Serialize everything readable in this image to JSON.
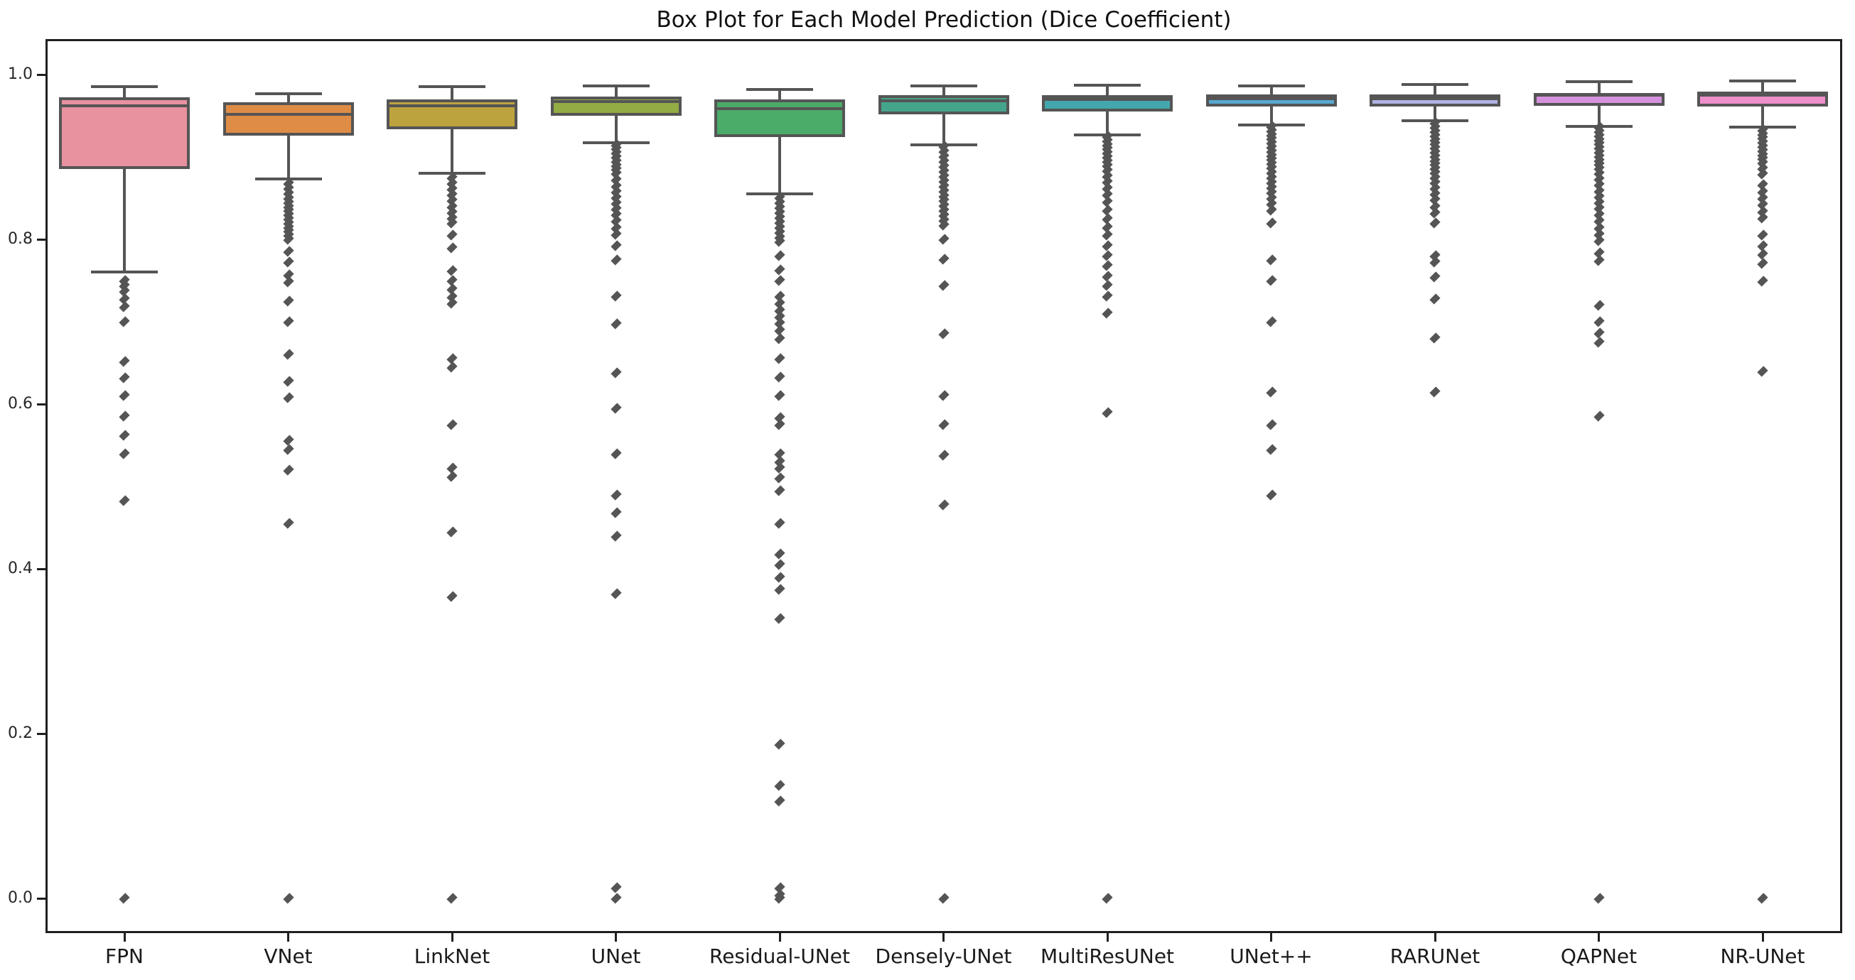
{
  "page": {
    "background": "#ffffff"
  },
  "chart_data": {
    "type": "box",
    "title": "Box Plot for Each Model Prediction (Dice Coefficient)",
    "xlabel": "",
    "ylabel": "",
    "grid": false,
    "legend": "none",
    "ylim": [
      -0.042,
      1.043
    ],
    "yticks": [
      "0.0",
      "0.2",
      "0.4",
      "0.6",
      "0.8",
      "1.0"
    ],
    "line_color": "#555555",
    "categories": [
      "FPN",
      "VNet",
      "LinkNet",
      "UNet",
      "Residual-UNet",
      "Densely-UNet",
      "MultiResUNet",
      "UNet++",
      "RARUNet",
      "QAPNet",
      "NR-UNet"
    ],
    "series": [
      {
        "name": "FPN",
        "color": "#e8919f",
        "whisker_low": 0.76,
        "q1": 0.885,
        "median": 0.962,
        "q3": 0.972,
        "whisker_high": 0.985,
        "outliers": [
          0.75,
          0.744,
          0.737,
          0.728,
          0.718,
          0.7,
          0.652,
          0.632,
          0.61,
          0.585,
          0.562,
          0.54,
          0.483,
          0.0
        ]
      },
      {
        "name": "VNet",
        "color": "#de8c46",
        "whisker_low": 0.873,
        "q1": 0.926,
        "median": 0.952,
        "q3": 0.966,
        "whisker_high": 0.977,
        "outliers": [
          0.868,
          0.862,
          0.856,
          0.85,
          0.845,
          0.84,
          0.835,
          0.83,
          0.825,
          0.82,
          0.815,
          0.81,
          0.805,
          0.8,
          0.785,
          0.772,
          0.757,
          0.748,
          0.725,
          0.7,
          0.66,
          0.628,
          0.608,
          0.556,
          0.545,
          0.52,
          0.455,
          0.0
        ]
      },
      {
        "name": "LinkNet",
        "color": "#bda33d",
        "whisker_low": 0.88,
        "q1": 0.934,
        "median": 0.962,
        "q3": 0.97,
        "whisker_high": 0.985,
        "outliers": [
          0.875,
          0.868,
          0.861,
          0.854,
          0.847,
          0.84,
          0.833,
          0.826,
          0.82,
          0.805,
          0.79,
          0.762,
          0.75,
          0.74,
          0.73,
          0.722,
          0.655,
          0.645,
          0.575,
          0.522,
          0.512,
          0.445,
          0.366,
          0.0
        ]
      },
      {
        "name": "UNet",
        "color": "#93ac44",
        "whisker_low": 0.917,
        "q1": 0.95,
        "median": 0.967,
        "q3": 0.973,
        "whisker_high": 0.986,
        "outliers": [
          0.915,
          0.91,
          0.905,
          0.9,
          0.895,
          0.89,
          0.885,
          0.88,
          0.872,
          0.865,
          0.858,
          0.851,
          0.844,
          0.837,
          0.83,
          0.822,
          0.814,
          0.806,
          0.792,
          0.775,
          0.731,
          0.697,
          0.638,
          0.595,
          0.54,
          0.49,
          0.468,
          0.44,
          0.37,
          0.013,
          0.0
        ]
      },
      {
        "name": "Residual-UNet",
        "color": "#4bab68",
        "whisker_low": 0.855,
        "q1": 0.924,
        "median": 0.959,
        "q3": 0.97,
        "whisker_high": 0.982,
        "outliers": [
          0.851,
          0.845,
          0.839,
          0.833,
          0.827,
          0.821,
          0.815,
          0.809,
          0.803,
          0.797,
          0.78,
          0.763,
          0.75,
          0.731,
          0.722,
          0.714,
          0.706,
          0.698,
          0.69,
          0.679,
          0.655,
          0.633,
          0.61,
          0.584,
          0.575,
          0.54,
          0.53,
          0.522,
          0.51,
          0.495,
          0.455,
          0.418,
          0.405,
          0.39,
          0.375,
          0.34,
          0.187,
          0.137,
          0.118,
          0.013,
          0.004,
          0.0
        ]
      },
      {
        "name": "Densely-UNet",
        "color": "#45a58c",
        "whisker_low": 0.915,
        "q1": 0.952,
        "median": 0.968,
        "q3": 0.975,
        "whisker_high": 0.986,
        "outliers": [
          0.913,
          0.907,
          0.901,
          0.895,
          0.889,
          0.883,
          0.877,
          0.871,
          0.865,
          0.859,
          0.853,
          0.847,
          0.841,
          0.835,
          0.829,
          0.823,
          0.817,
          0.8,
          0.776,
          0.744,
          0.685,
          0.61,
          0.575,
          0.538,
          0.478,
          0.0
        ]
      },
      {
        "name": "MultiResUNet",
        "color": "#44a7ae",
        "whisker_low": 0.927,
        "q1": 0.955,
        "median": 0.97,
        "q3": 0.975,
        "whisker_high": 0.987,
        "outliers": [
          0.925,
          0.92,
          0.915,
          0.91,
          0.905,
          0.9,
          0.895,
          0.89,
          0.884,
          0.877,
          0.87,
          0.862,
          0.854,
          0.846,
          0.835,
          0.825,
          0.815,
          0.805,
          0.792,
          0.78,
          0.768,
          0.755,
          0.744,
          0.731,
          0.71,
          0.59,
          0.0
        ]
      },
      {
        "name": "UNet++",
        "color": "#58a8d2",
        "whisker_low": 0.939,
        "q1": 0.961,
        "median": 0.971,
        "q3": 0.976,
        "whisker_high": 0.986,
        "outliers": [
          0.937,
          0.932,
          0.927,
          0.922,
          0.917,
          0.912,
          0.907,
          0.902,
          0.897,
          0.892,
          0.887,
          0.881,
          0.875,
          0.869,
          0.863,
          0.857,
          0.85,
          0.843,
          0.835,
          0.82,
          0.775,
          0.75,
          0.7,
          0.615,
          0.575,
          0.545,
          0.49
        ]
      },
      {
        "name": "RARUNet",
        "color": "#aeb3e2",
        "whisker_low": 0.944,
        "q1": 0.961,
        "median": 0.971,
        "q3": 0.976,
        "whisker_high": 0.988,
        "outliers": [
          0.941,
          0.936,
          0.931,
          0.926,
          0.921,
          0.916,
          0.911,
          0.906,
          0.901,
          0.896,
          0.891,
          0.886,
          0.881,
          0.875,
          0.869,
          0.862,
          0.855,
          0.848,
          0.84,
          0.832,
          0.82,
          0.78,
          0.772,
          0.754,
          0.728,
          0.68,
          0.615
        ]
      },
      {
        "name": "QAPNet",
        "color": "#d591dd",
        "whisker_low": 0.937,
        "q1": 0.962,
        "median": 0.975,
        "q3": 0.978,
        "whisker_high": 0.991,
        "outliers": [
          0.936,
          0.931,
          0.926,
          0.921,
          0.916,
          0.911,
          0.906,
          0.901,
          0.896,
          0.891,
          0.886,
          0.88,
          0.873,
          0.866,
          0.859,
          0.852,
          0.845,
          0.838,
          0.83,
          0.822,
          0.814,
          0.806,
          0.798,
          0.784,
          0.774,
          0.72,
          0.7,
          0.686,
          0.675,
          0.585,
          0.0
        ]
      },
      {
        "name": "NR-UNet",
        "color": "#ee8fcb",
        "whisker_low": 0.936,
        "q1": 0.961,
        "median": 0.975,
        "q3": 0.979,
        "whisker_high": 0.992,
        "outliers": [
          0.933,
          0.928,
          0.923,
          0.918,
          0.913,
          0.908,
          0.903,
          0.898,
          0.893,
          0.886,
          0.879,
          0.866,
          0.858,
          0.85,
          0.842,
          0.834,
          0.826,
          0.805,
          0.792,
          0.782,
          0.771,
          0.749,
          0.64,
          0.0
        ]
      }
    ]
  }
}
